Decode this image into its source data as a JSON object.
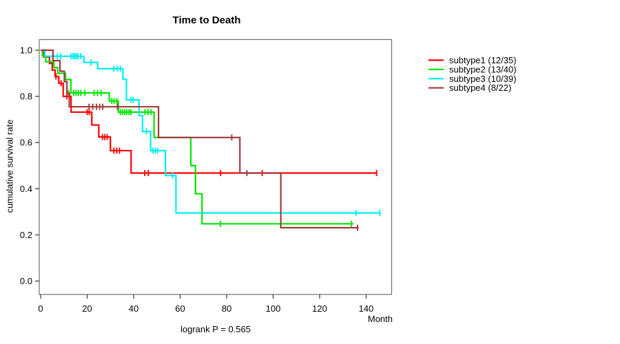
{
  "title": "Time to Death",
  "footer": "logrank P = 0.565",
  "x_axis": {
    "label": "Month",
    "ticks": [
      0,
      20,
      40,
      60,
      80,
      100,
      120,
      140
    ]
  },
  "y_axis": {
    "label": "cumulative survival rate",
    "ticks": [
      1.0,
      0.8,
      0.6,
      0.4,
      0.2,
      0.0
    ]
  },
  "colors": {
    "axis_box": "#6e6e6e",
    "tick": "#333333",
    "text": "#000000",
    "background": "#ffffff"
  },
  "chart_data": {
    "type": "line",
    "subtype": "kaplan-meier-step",
    "title": "Time to Death",
    "xlabel": "Month",
    "ylabel": "cumulative survival rate",
    "xlim": [
      0,
      151
    ],
    "ylim": [
      0.0,
      1.0
    ],
    "grid": false,
    "legend_position": "right-outside",
    "annotation": "logrank P = 0.565",
    "series": [
      {
        "name": "subtype1",
        "label": "subtype1 (12/35)",
        "deaths": 12,
        "n": 35,
        "color": "#ff0000",
        "steps": [
          [
            1.4,
            0.971
          ],
          [
            3.8,
            0.943
          ],
          [
            5.0,
            0.914
          ],
          [
            6.2,
            0.886
          ],
          [
            7.8,
            0.857
          ],
          [
            9.7,
            0.8
          ],
          [
            13.1,
            0.732
          ],
          [
            22.0,
            0.676
          ],
          [
            25.0,
            0.624
          ],
          [
            30.0,
            0.565
          ],
          [
            38.9,
            0.468
          ]
        ],
        "end": 144.5,
        "censors": [
          [
            6.6,
            0.886
          ],
          [
            8.8,
            0.857
          ],
          [
            11.3,
            0.8
          ],
          [
            12.4,
            0.8
          ],
          [
            20.0,
            0.732
          ],
          [
            20.9,
            0.732
          ],
          [
            26.6,
            0.624
          ],
          [
            27.6,
            0.624
          ],
          [
            28.6,
            0.624
          ],
          [
            31.5,
            0.565
          ],
          [
            32.7,
            0.565
          ],
          [
            33.9,
            0.565
          ],
          [
            44.8,
            0.468
          ],
          [
            46.3,
            0.468
          ],
          [
            77.4,
            0.468
          ],
          [
            95.3,
            0.468
          ],
          [
            144.5,
            0.468
          ]
        ]
      },
      {
        "name": "subtype2",
        "label": "subtype2 (13/40)",
        "deaths": 13,
        "n": 40,
        "color": "#00e600",
        "steps": [
          [
            0.8,
            0.975
          ],
          [
            2.2,
            0.95
          ],
          [
            5.7,
            0.925
          ],
          [
            7.3,
            0.9
          ],
          [
            10.7,
            0.873
          ],
          [
            13.0,
            0.815
          ],
          [
            29.5,
            0.78
          ],
          [
            33.4,
            0.732
          ],
          [
            48.8,
            0.622
          ],
          [
            64.6,
            0.5
          ],
          [
            66.6,
            0.378
          ],
          [
            69.4,
            0.248
          ]
        ],
        "end": 134.5,
        "censors": [
          [
            12.0,
            0.815
          ],
          [
            14.2,
            0.815
          ],
          [
            15.2,
            0.815
          ],
          [
            16.2,
            0.815
          ],
          [
            17.3,
            0.815
          ],
          [
            19.0,
            0.815
          ],
          [
            23.0,
            0.815
          ],
          [
            24.5,
            0.815
          ],
          [
            26.0,
            0.815
          ],
          [
            30.6,
            0.78
          ],
          [
            31.6,
            0.78
          ],
          [
            32.8,
            0.78
          ],
          [
            34.3,
            0.732
          ],
          [
            35.2,
            0.732
          ],
          [
            36.1,
            0.732
          ],
          [
            37.0,
            0.732
          ],
          [
            38.0,
            0.732
          ],
          [
            38.8,
            0.732
          ],
          [
            44.9,
            0.732
          ],
          [
            46.2,
            0.732
          ],
          [
            47.5,
            0.732
          ],
          [
            77.3,
            0.248
          ],
          [
            133.7,
            0.248
          ]
        ]
      },
      {
        "name": "subtype3",
        "label": "subtype3 (10/39)",
        "deaths": 10,
        "n": 39,
        "color": "#00eeee",
        "steps": [
          [
            1.8,
            0.974
          ],
          [
            18.6,
            0.947
          ],
          [
            24.5,
            0.92
          ],
          [
            35.4,
            0.874
          ],
          [
            36.9,
            0.785
          ],
          [
            42.3,
            0.717
          ],
          [
            43.8,
            0.648
          ],
          [
            47.3,
            0.565
          ],
          [
            53.7,
            0.457
          ],
          [
            58.2,
            0.295
          ]
        ],
        "end": 145.9,
        "censors": [
          [
            7.2,
            0.974
          ],
          [
            8.6,
            0.974
          ],
          [
            13.0,
            0.974
          ],
          [
            13.9,
            0.974
          ],
          [
            14.6,
            0.974
          ],
          [
            15.3,
            0.974
          ],
          [
            16.0,
            0.974
          ],
          [
            17.2,
            0.974
          ],
          [
            21.6,
            0.947
          ],
          [
            31.5,
            0.92
          ],
          [
            33.0,
            0.92
          ],
          [
            34.3,
            0.92
          ],
          [
            38.9,
            0.785
          ],
          [
            39.8,
            0.785
          ],
          [
            45.5,
            0.648
          ],
          [
            48.3,
            0.565
          ],
          [
            49.3,
            0.565
          ],
          [
            50.3,
            0.565
          ],
          [
            56.7,
            0.457
          ],
          [
            135.6,
            0.295
          ],
          [
            145.9,
            0.295
          ]
        ]
      },
      {
        "name": "subtype4",
        "label": "subtype4 (8/22)",
        "deaths": 8,
        "n": 22,
        "color": "#a03a3a",
        "steps": [
          [
            5.3,
            0.955
          ],
          [
            8.3,
            0.909
          ],
          [
            10.2,
            0.864
          ],
          [
            11.3,
            0.815
          ],
          [
            12.3,
            0.755
          ],
          [
            50.7,
            0.622
          ],
          [
            85.7,
            0.468
          ],
          [
            103.3,
            0.231
          ]
        ],
        "end": 136.8,
        "censors": [
          [
            20.8,
            0.755
          ],
          [
            22.4,
            0.755
          ],
          [
            24.0,
            0.755
          ],
          [
            25.4,
            0.755
          ],
          [
            26.7,
            0.755
          ],
          [
            33.0,
            0.755
          ],
          [
            82.2,
            0.622
          ],
          [
            88.7,
            0.468
          ],
          [
            136.3,
            0.231
          ]
        ]
      }
    ]
  }
}
